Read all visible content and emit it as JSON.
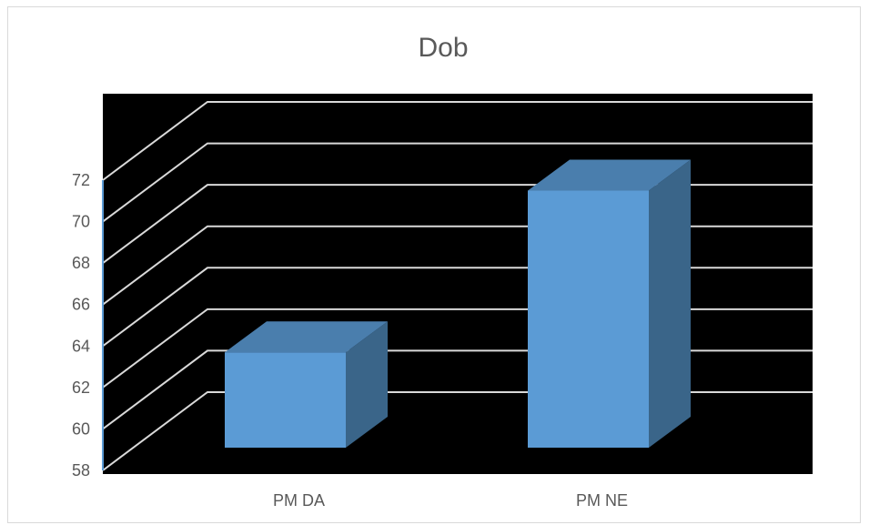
{
  "chart_data": {
    "type": "bar",
    "title": "Dob",
    "categories": [
      "PM DA",
      "PM NE"
    ],
    "values": [
      63.3,
      71.1
    ],
    "ylim": [
      58,
      72
    ],
    "yticks": [
      58,
      60,
      62,
      64,
      66,
      68,
      70,
      72
    ],
    "grid": true,
    "legend": "none",
    "colors": {
      "plot_background": "#000000",
      "bar_front": "#5b9bd5",
      "bar_top": "#4a7ead",
      "bar_side": "#3a6589",
      "gridline": "#d9d9d9",
      "axis": "#5b9bd5",
      "text": "#595959"
    }
  }
}
